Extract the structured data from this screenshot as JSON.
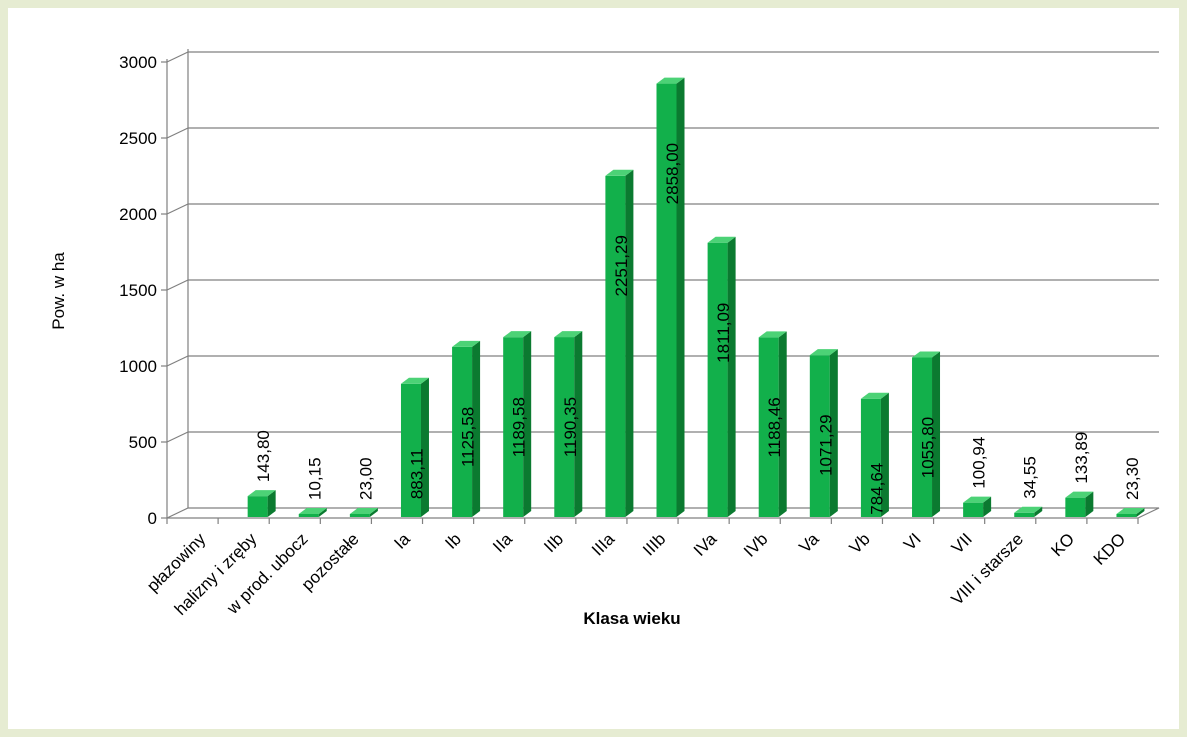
{
  "chart_data": {
    "type": "bar",
    "title": "",
    "xlabel": "Klasa wieku",
    "ylabel": "Pow. w ha",
    "ylim": [
      0,
      3000
    ],
    "yticks": [
      "0",
      "500",
      "1000",
      "1500",
      "2000",
      "2500",
      "3000"
    ],
    "ytick_values": [
      0,
      500,
      1000,
      1500,
      2000,
      2500,
      3000
    ],
    "grid": true,
    "style": "3d-column",
    "colors": {
      "bar_front": "#12b04b",
      "bar_side": "#0b7a30",
      "bar_top": "#4cd276",
      "grid": "#808080",
      "frame": "#e6ecd2"
    },
    "categories": [
      "płazowiny",
      "halizny i zręby",
      "w prod. ubocz",
      "pozostałe",
      "Ia",
      "Ib",
      "IIa",
      "IIb",
      "IIIa",
      "IIIb",
      "IVa",
      "IVb",
      "Va",
      "Vb",
      "VI",
      "VII",
      "VIII i starsze",
      "KO",
      "KDO"
    ],
    "values": [
      null,
      143.8,
      10.15,
      23.0,
      883.11,
      1125.58,
      1189.58,
      1190.35,
      2251.29,
      2858.0,
      1811.09,
      1188.46,
      1071.29,
      784.64,
      1055.8,
      100.94,
      34.55,
      133.89,
      23.3
    ],
    "data_labels": [
      "",
      "143,80",
      "10,15",
      "23,00",
      "883,11",
      "1125,58",
      "1189,58",
      "1190,35",
      "2251,29",
      "2858,00",
      "1811,09",
      "1188,46",
      "1071,29",
      "784,64",
      "1055,80",
      "100,94",
      "34,55",
      "133,89",
      "23,30"
    ]
  }
}
